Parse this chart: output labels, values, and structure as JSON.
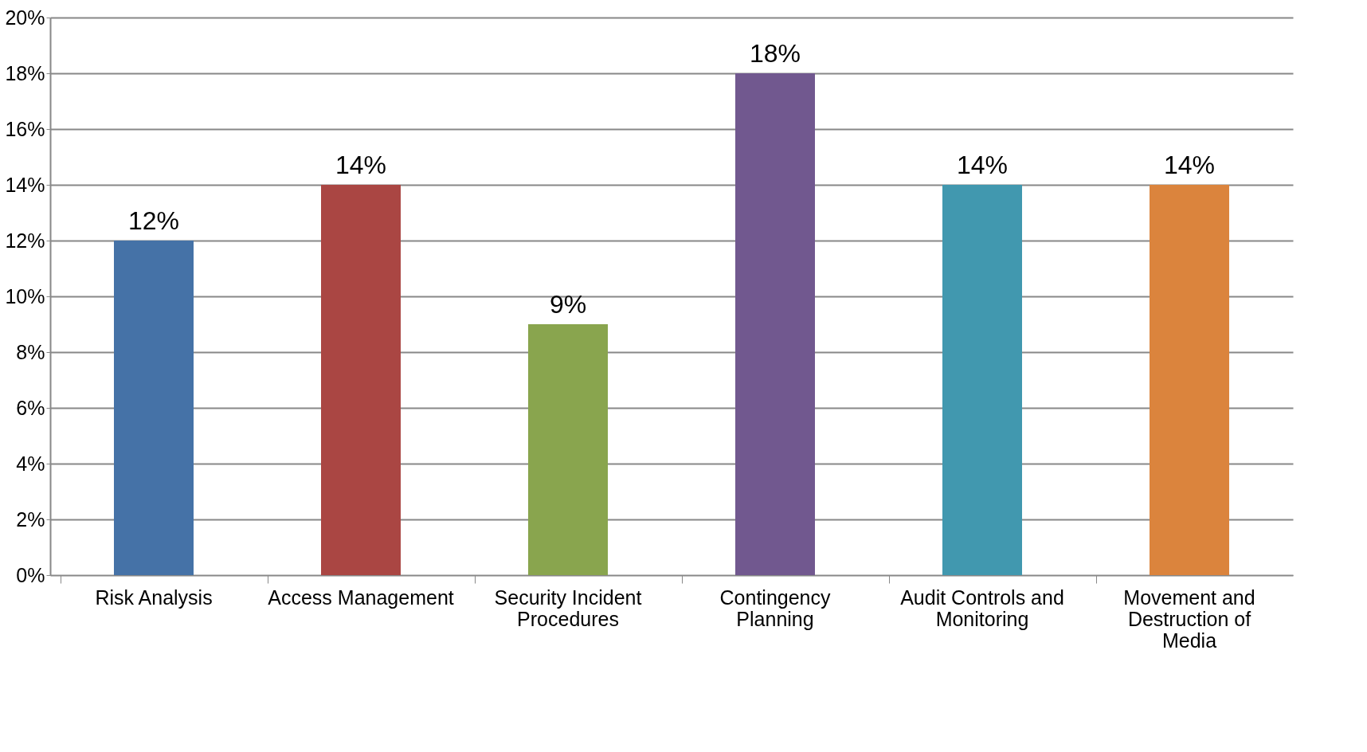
{
  "chart_data": {
    "type": "bar",
    "categories": [
      "Risk Analysis",
      "Access Management",
      "Security Incident Procedures",
      "Contingency Planning",
      "Audit Controls and Monitoring",
      "Movement and Destruction of Media"
    ],
    "values": [
      12,
      14,
      9,
      18,
      14,
      14
    ],
    "colors": [
      "#4572a7",
      "#aa4643",
      "#89a54e",
      "#71588f",
      "#4198af",
      "#db843d"
    ],
    "value_labels": [
      "12%",
      "14%",
      "9%",
      "18%",
      "14%",
      "14%"
    ],
    "ylim": [
      0,
      20
    ],
    "yticks": [
      {
        "value": 0,
        "label": "0%"
      },
      {
        "value": 2,
        "label": "2%"
      },
      {
        "value": 4,
        "label": "4%"
      },
      {
        "value": 6,
        "label": "6%"
      },
      {
        "value": 8,
        "label": "8%"
      },
      {
        "value": 10,
        "label": "10%"
      },
      {
        "value": 12,
        "label": "12%"
      },
      {
        "value": 14,
        "label": "14%"
      },
      {
        "value": 16,
        "label": "16%"
      },
      {
        "value": 18,
        "label": "18%"
      },
      {
        "value": 20,
        "label": "20%"
      }
    ],
    "grid": "y"
  }
}
